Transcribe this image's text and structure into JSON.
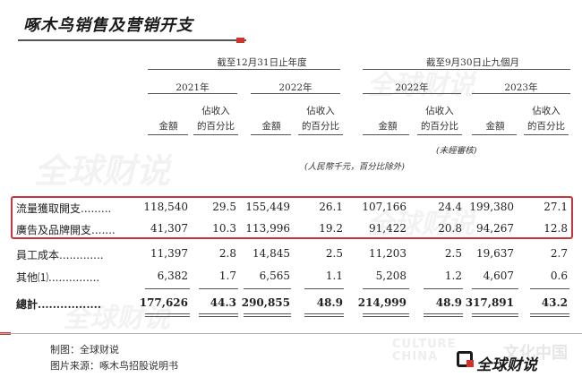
{
  "title": "啄木鸟销售及营销开支",
  "header": {
    "group1": "截至12月31日止年度",
    "group2": "截至9月30日止九個月",
    "years": [
      "2021年",
      "2022年",
      "2022年",
      "2023年"
    ],
    "amount": "金額",
    "pct_line1": "佔收入",
    "pct_line2": "的百分比",
    "unaudited": "(未經審核)",
    "unit_note": "(人民幣千元，百分比除外)"
  },
  "rows": [
    {
      "label": "流量獲取開支",
      "values": [
        "118,540",
        "29.5",
        "155,449",
        "26.1",
        "107,166",
        "24.4",
        "199,380",
        "27.1"
      ]
    },
    {
      "label": "廣告及品牌開支",
      "values": [
        "41,307",
        "10.3",
        "113,996",
        "19.2",
        "91,422",
        "20.8",
        "94,267",
        "12.8"
      ]
    },
    {
      "label": "員工成本",
      "values": [
        "11,397",
        "2.8",
        "14,845",
        "2.5",
        "11,203",
        "2.5",
        "19,637",
        "2.7"
      ]
    },
    {
      "label": "其他⑴",
      "values": [
        "6,382",
        "1.7",
        "6,565",
        "1.1",
        "5,208",
        "1.2",
        "4,607",
        "0.6"
      ]
    }
  ],
  "total": {
    "label": "總計",
    "values": [
      "177,626",
      "44.3",
      "290,855",
      "48.9",
      "214,999",
      "48.9",
      "317,891",
      "43.2"
    ]
  },
  "footer": {
    "maker": "制图：全球财说",
    "source": "图片来源：啄木鸟招股说明书"
  },
  "watermarks": {
    "text": "全球财说",
    "brand_en": "CULTURE\nCHINA",
    "brand_cn_faded": "文化中国",
    "brand_cn": "全球财说"
  }
}
